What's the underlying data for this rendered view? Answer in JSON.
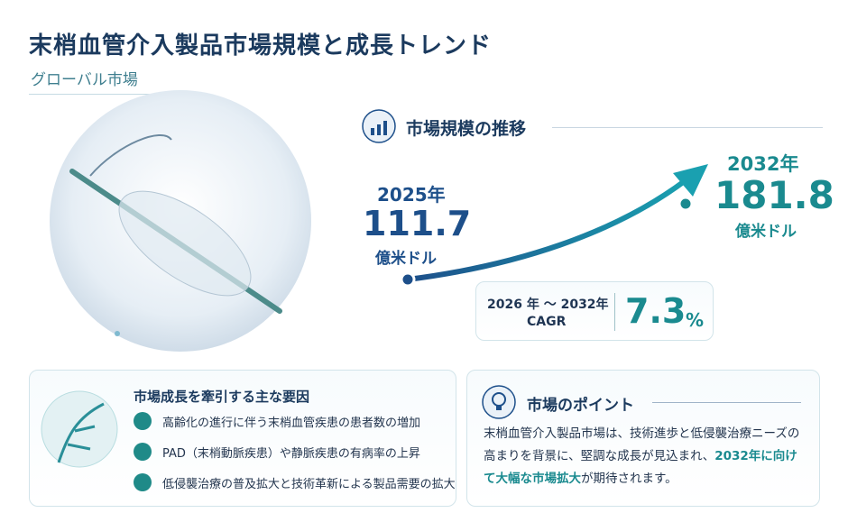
{
  "header": {
    "title": "末梢血管介入製品市場規模と成長トレンド",
    "subtitle": "グローバル市場"
  },
  "market_size": {
    "heading": "市場規模の推移",
    "start": {
      "year": "2025年",
      "value": 111.7,
      "unit": "億米ドル"
    },
    "end": {
      "year": "2032年",
      "value": 181.8,
      "unit": "億米ドル"
    },
    "cagr": {
      "period": "2026 年 〜 2032年",
      "label": "CAGR",
      "value": 7.3,
      "unit": "%"
    }
  },
  "drivers": {
    "heading": "市場成長を牽引する主な要因",
    "items": [
      "高齢化の進行に伴う末梢血管疾患の患者数の増加",
      "PAD（末梢動脈疾患）や静脈疾患の有病率の上昇",
      "低侵襲治療の普及拡大と技術革新による製品需要の拡大"
    ]
  },
  "points": {
    "heading": "市場のポイント",
    "text": "末梢血管介入製品市場は、技術進歩と低侵襲治療ニーズの高まりを背景に、堅調な成長が見込まれ、",
    "highlight": "2032年に向けて大幅な市場拡大",
    "text_end": "が期待されます。"
  }
}
